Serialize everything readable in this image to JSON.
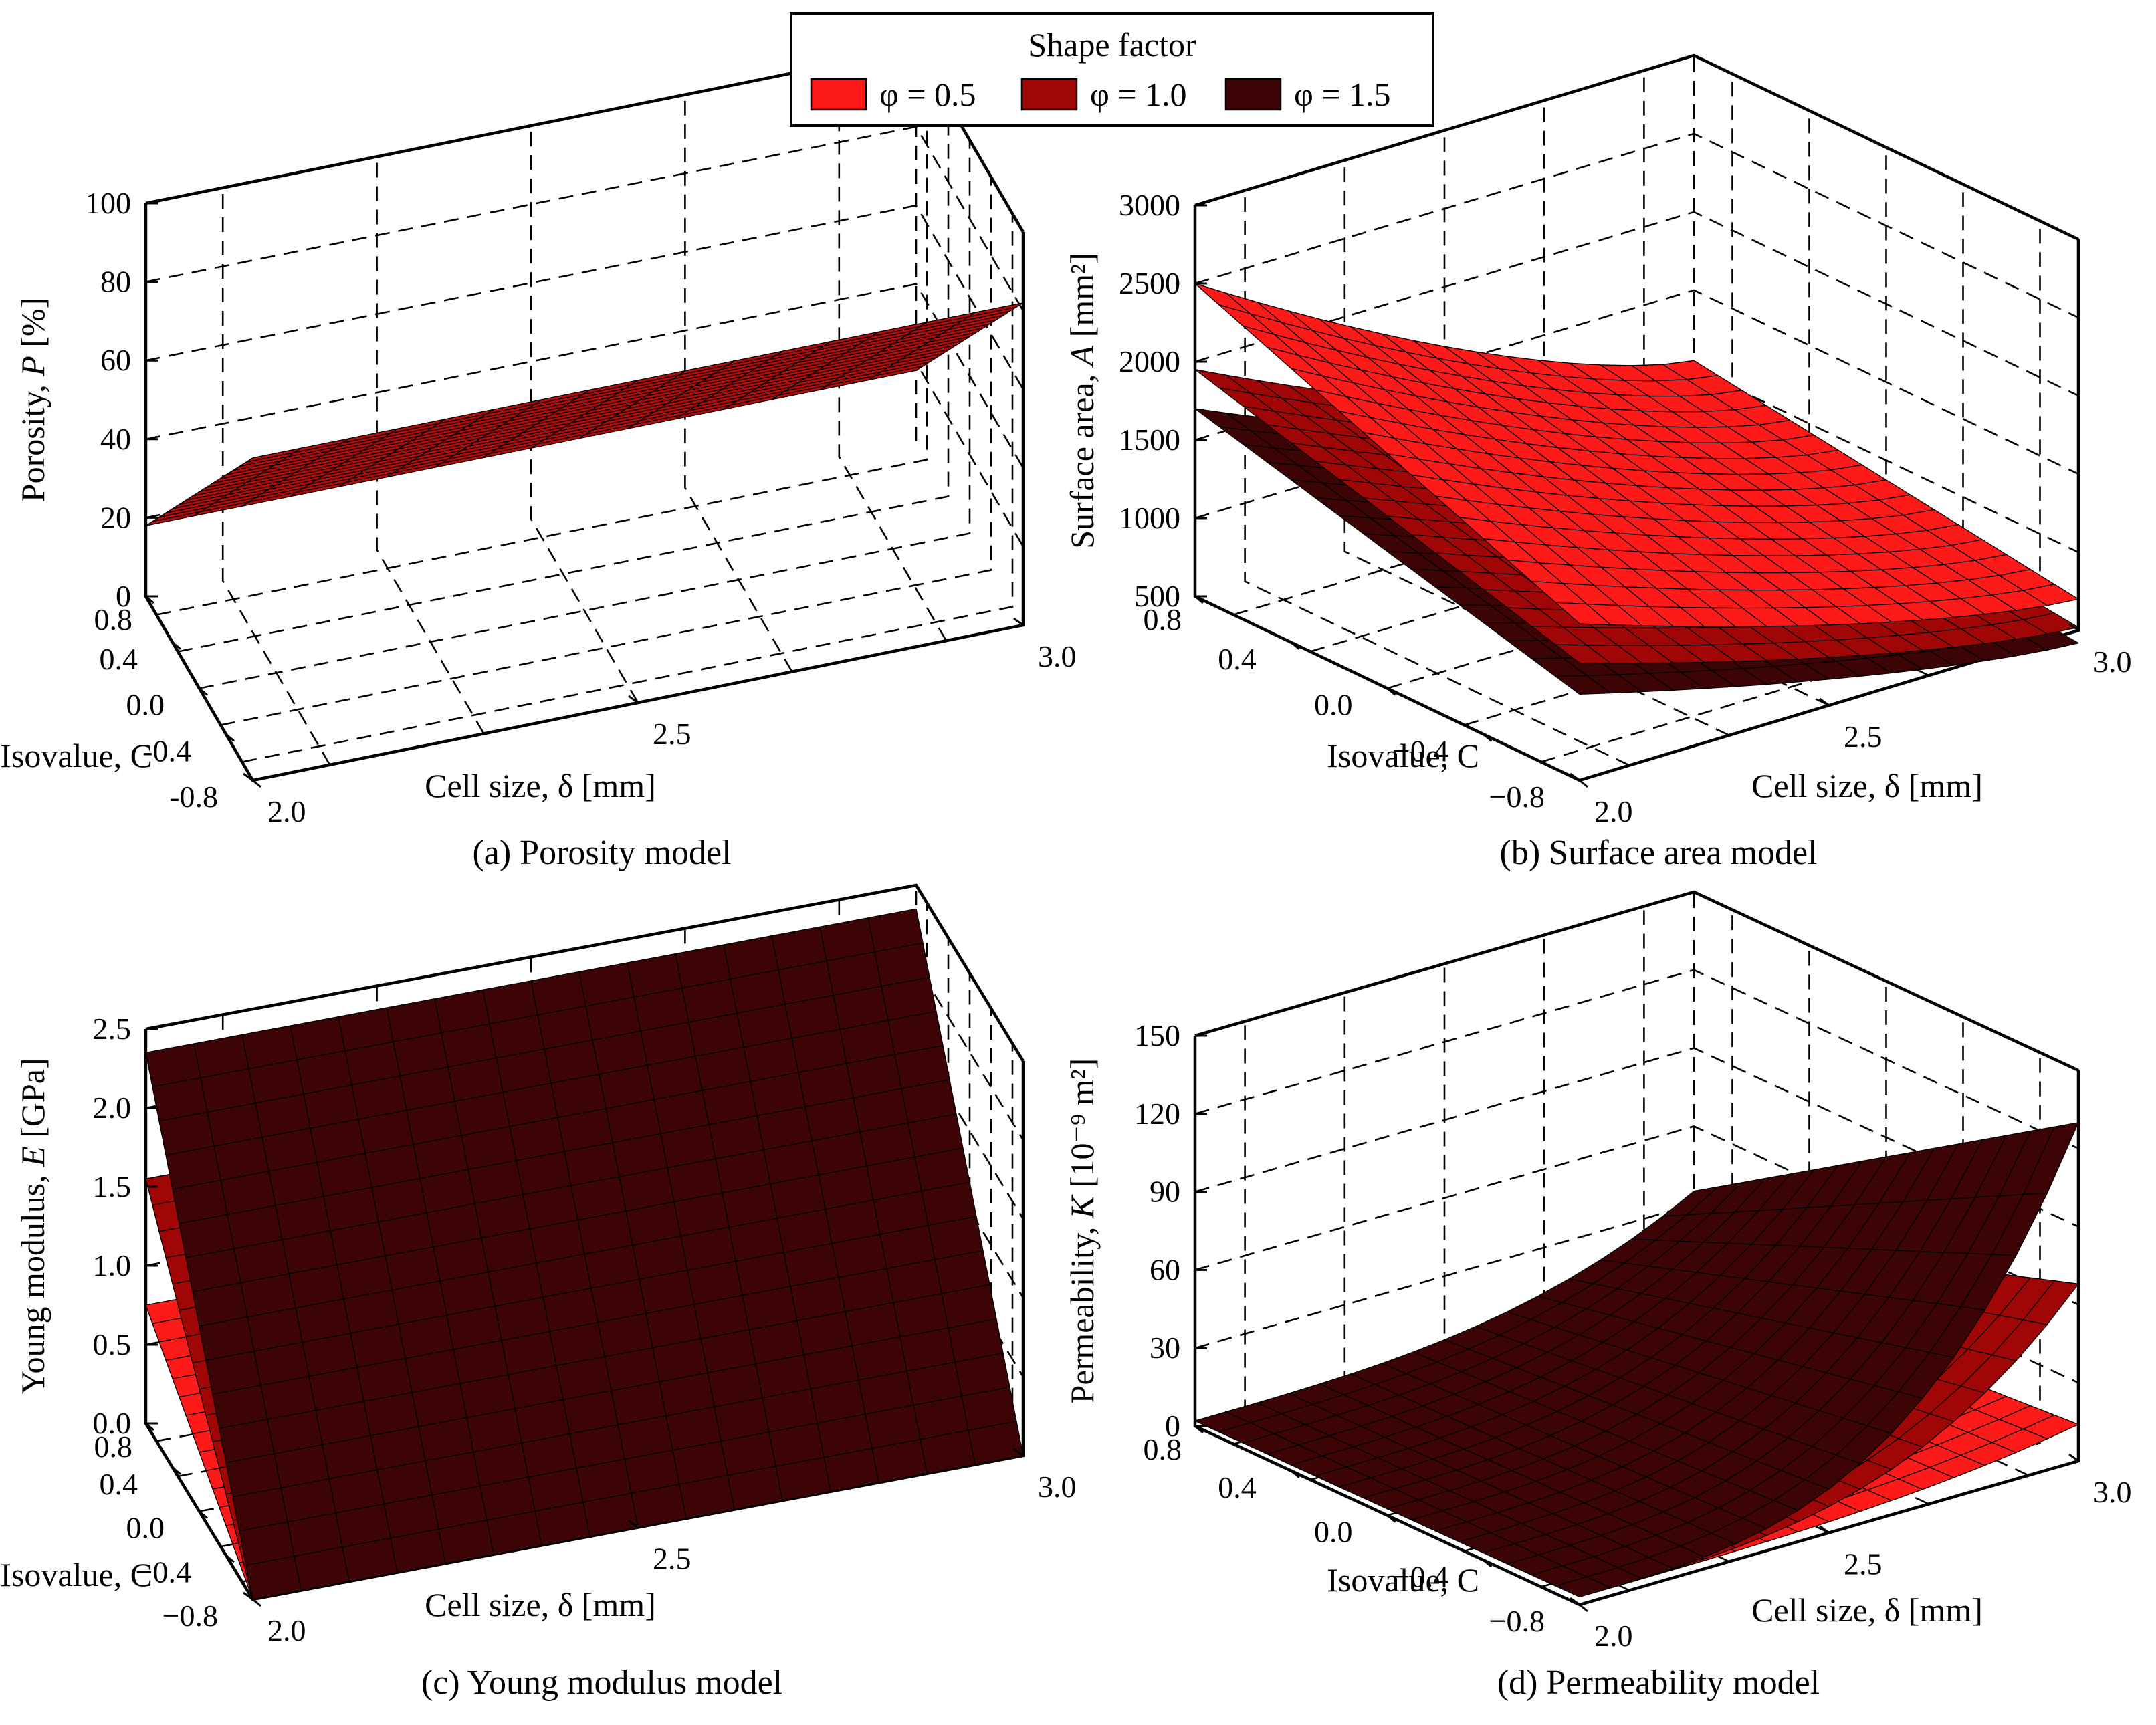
{
  "legend": {
    "title": "Shape factor",
    "entries": [
      {
        "label": "φ = 0.5",
        "color": "#ff1a1a"
      },
      {
        "label": "φ = 1.0",
        "color": "#a00606"
      },
      {
        "label": "φ = 1.5",
        "color": "#3c0404"
      }
    ]
  },
  "chart_data": [
    {
      "id": "a",
      "type": "surface3d",
      "caption": "(a) Porosity model",
      "title": "Porosity model",
      "xlabel": "Cell size, δ [mm]",
      "xticks": [
        "2.0",
        "2.5",
        "3.0"
      ],
      "xlim": [
        2.0,
        3.0
      ],
      "ylabel": "Isovalue, C",
      "yticks": [
        "0.8",
        "0.4",
        "0.0",
        "-0.4",
        "-0.8"
      ],
      "ylim": [
        -0.8,
        0.8
      ],
      "zlabel_pre": "Porosity, ",
      "zlabel_var": "P",
      "zlabel_post": " [%]",
      "zticks": [
        "0",
        "20",
        "40",
        "60",
        "80",
        "100"
      ],
      "zlim": [
        0,
        100
      ],
      "series": [
        {
          "name": "φ = 0.5",
          "corners": {
            "c_0.8_d_2.0": 18,
            "c_0.8_d_3.0": 18,
            "c_-0.8_d_2.0": 82,
            "c_-0.8_d_3.0": 82
          }
        }
      ]
    },
    {
      "id": "b",
      "type": "surface3d",
      "caption": "(b) Surface area model",
      "title": "Surface area model",
      "xlabel": "Cell size, δ [mm]",
      "xticks": [
        "2.0",
        "2.5",
        "3.0"
      ],
      "xlim": [
        2.0,
        3.0
      ],
      "ylabel": "Isovalue, C",
      "yticks": [
        "0.8",
        "0.4",
        "0.0",
        "−0.4",
        "−0.8"
      ],
      "ylim": [
        -0.8,
        0.8
      ],
      "zlabel_pre": "Surface area, ",
      "zlabel_var": "A",
      "zlabel_post": " [mm²]",
      "zticks": [
        "500",
        "1000",
        "1500",
        "2000",
        "2500",
        "3000"
      ],
      "zlim": [
        500,
        3000
      ],
      "series": [
        {
          "name": "φ = 0.5",
          "corners": {
            "c_0.8_d_2.0": 2500,
            "c_0.8_d_3.0": 1050,
            "c_-0.8_d_2.0": 1500,
            "c_-0.8_d_3.0": 700
          }
        },
        {
          "name": "φ = 1.0",
          "corners": {
            "c_0.8_d_2.0": 1950,
            "c_0.8_d_3.0": 800,
            "c_-0.8_d_2.0": 1250,
            "c_-0.8_d_3.0": 520
          }
        },
        {
          "name": "φ = 1.5",
          "corners": {
            "c_0.8_d_2.0": 1700,
            "c_0.8_d_3.0": 650,
            "c_-0.8_d_2.0": 1050,
            "c_-0.8_d_3.0": 420
          }
        }
      ]
    },
    {
      "id": "c",
      "type": "surface3d",
      "caption": "(c) Young modulus model",
      "title": "Young modulus model",
      "xlabel": "Cell size, δ [mm]",
      "xticks": [
        "2.0",
        "2.5",
        "3.0"
      ],
      "xlim": [
        2.0,
        3.0
      ],
      "ylabel": "Isovalue, C",
      "yticks": [
        "0.8",
        "0.4",
        "0.0",
        "−0.4",
        "−0.8"
      ],
      "ylim": [
        -0.8,
        0.8
      ],
      "zlabel_pre": "Young modulus, ",
      "zlabel_var": "E",
      "zlabel_post": " [GPa]",
      "zticks": [
        "0.0",
        "0.5",
        "1.0",
        "1.5",
        "2.0",
        "2.5"
      ],
      "zlim": [
        0,
        2.5
      ],
      "series": [
        {
          "name": "φ = 0.5",
          "corners": {
            "c_0.8_d_2.0": 0.75,
            "c_0.8_d_3.0": 0.75,
            "c_-0.8_d_2.0": 0.0,
            "c_-0.8_d_3.0": 0.0
          }
        },
        {
          "name": "φ = 1.0",
          "corners": {
            "c_0.8_d_2.0": 1.55,
            "c_0.8_d_3.0": 1.55,
            "c_-0.8_d_2.0": 0.0,
            "c_-0.8_d_3.0": 0.0
          }
        },
        {
          "name": "φ = 1.5",
          "corners": {
            "c_0.8_d_2.0": 2.35,
            "c_0.8_d_3.0": 2.35,
            "c_-0.8_d_2.0": 0.0,
            "c_-0.8_d_3.0": 0.0
          }
        }
      ]
    },
    {
      "id": "d",
      "type": "surface3d",
      "caption": "(d) Permeability model",
      "title": "Permeability model",
      "xlabel": "Cell size, δ [mm]",
      "xticks": [
        "2.0",
        "2.5",
        "3.0"
      ],
      "xlim": [
        2.0,
        3.0
      ],
      "ylabel": "Isovalue, C",
      "yticks": [
        "0.8",
        "0.4",
        "0.0",
        "−0.4",
        "−0.8"
      ],
      "ylim": [
        -0.8,
        0.8
      ],
      "zlabel_pre": "Permeability, ",
      "zlabel_var": "K",
      "zlabel_post": " [10⁻⁹ m²]",
      "zticks": [
        "0",
        "30",
        "60",
        "90",
        "120",
        "150"
      ],
      "zlim": [
        0,
        150
      ],
      "series": [
        {
          "name": "φ = 0.5",
          "corners": {
            "c_0.8_d_2.0": 2,
            "c_0.8_d_3.0": 3,
            "c_-0.8_d_2.0": 3,
            "c_-0.8_d_3.0": 14
          }
        },
        {
          "name": "φ = 1.0",
          "corners": {
            "c_0.8_d_2.0": 2,
            "c_0.8_d_3.0": 18,
            "c_-0.8_d_2.0": 3,
            "c_-0.8_d_3.0": 68
          }
        },
        {
          "name": "φ = 1.5",
          "corners": {
            "c_0.8_d_2.0": 2,
            "c_0.8_d_3.0": 35,
            "c_-0.8_d_2.0": 3,
            "c_-0.8_d_3.0": 130
          }
        }
      ]
    }
  ]
}
